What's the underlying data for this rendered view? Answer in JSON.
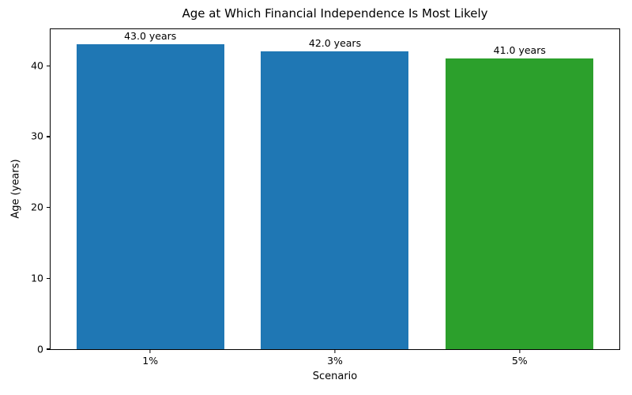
{
  "chart_data": {
    "type": "bar",
    "title": "Age at Which Financial Independence Is Most Likely",
    "xlabel": "Scenario",
    "ylabel": "Age (years)",
    "categories": [
      "1%",
      "3%",
      "5%"
    ],
    "values": [
      43.0,
      42.0,
      41.0
    ],
    "bar_labels": [
      "43.0 years",
      "42.0 years",
      "41.0 years"
    ],
    "bar_colors": [
      "#1f77b4",
      "#1f77b4",
      "#2ca02c"
    ],
    "bar_width_fraction": 0.8,
    "xlim": [
      -0.54,
      2.54
    ],
    "ylim": [
      0,
      45.15
    ],
    "yticks": [
      0,
      10,
      20,
      30,
      40
    ],
    "grid": false,
    "legend": "none",
    "background_color": "#ffffff",
    "text_color": "#000000"
  }
}
